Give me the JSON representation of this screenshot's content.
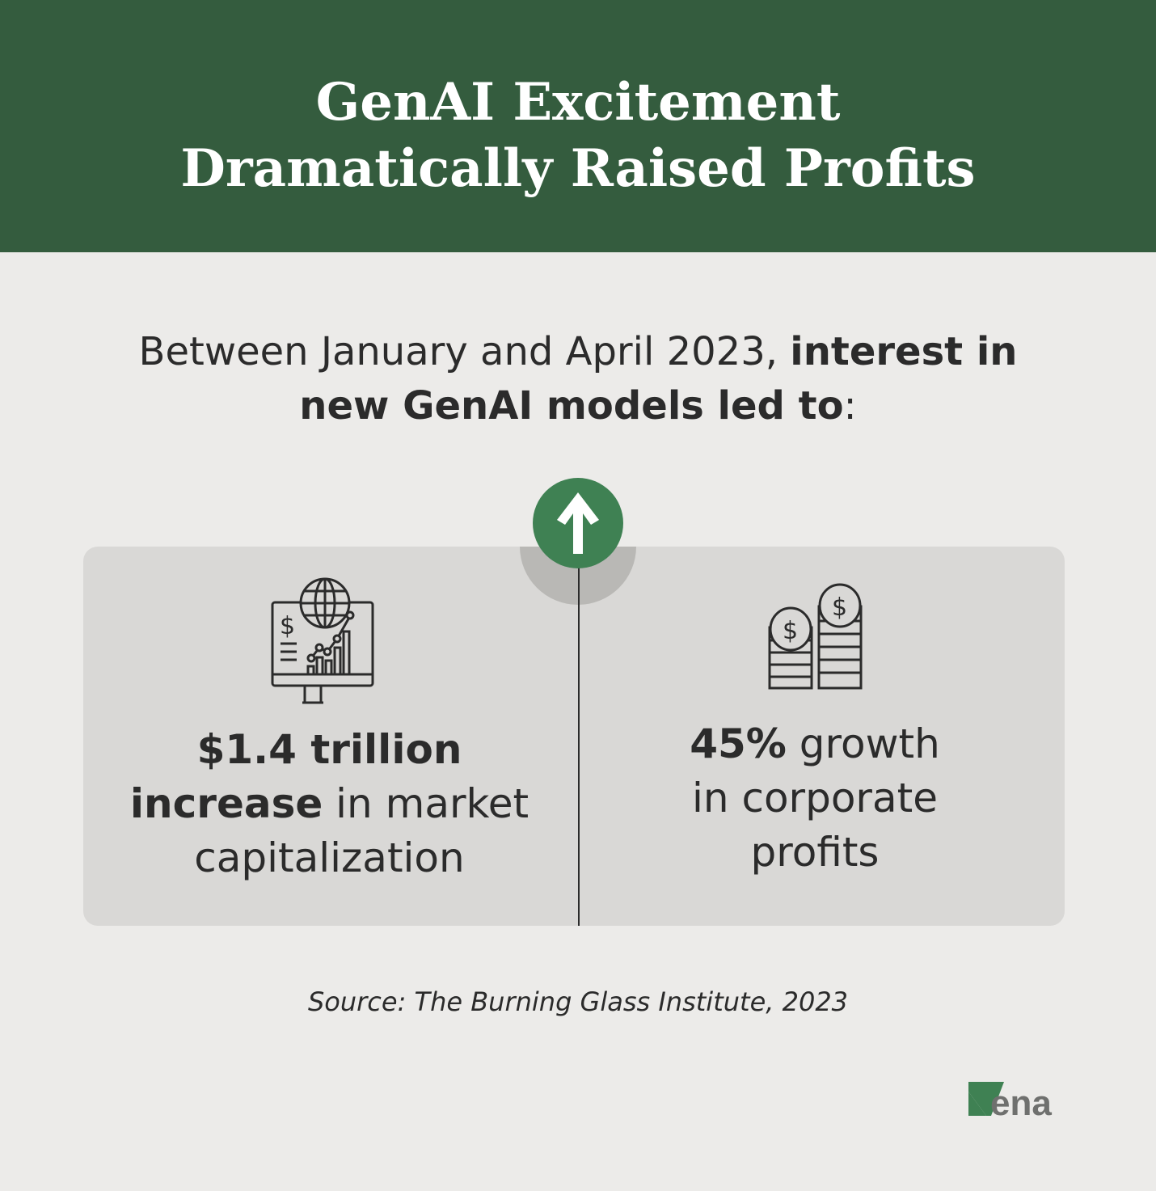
{
  "header": {
    "title_line1": "GenAI Excitement",
    "title_line2": "Dramatically Raised Profits"
  },
  "intro": {
    "text_plain": "Between January and April 2023, ",
    "text_bold_1": "interest in",
    "text_bold_2": "new GenAI models led to",
    "text_end": ":"
  },
  "stats": [
    {
      "bold_1": "$1.4 trillion",
      "bold_2": "increase",
      "plain_1": " in market",
      "plain_2": "capitalization",
      "icon": "monitor-globe-chart-icon"
    },
    {
      "bold_1": "45%",
      "plain_1": " growth",
      "plain_2": "in corporate",
      "plain_3": "profits",
      "icon": "coin-stacks-icon"
    }
  ],
  "source": "Source: The Burning Glass Institute, 2023",
  "logo": "vena",
  "colors": {
    "header": "#345c3e",
    "accent": "#3f8153",
    "background": "#ecebe9",
    "card": "#d9d8d6"
  }
}
